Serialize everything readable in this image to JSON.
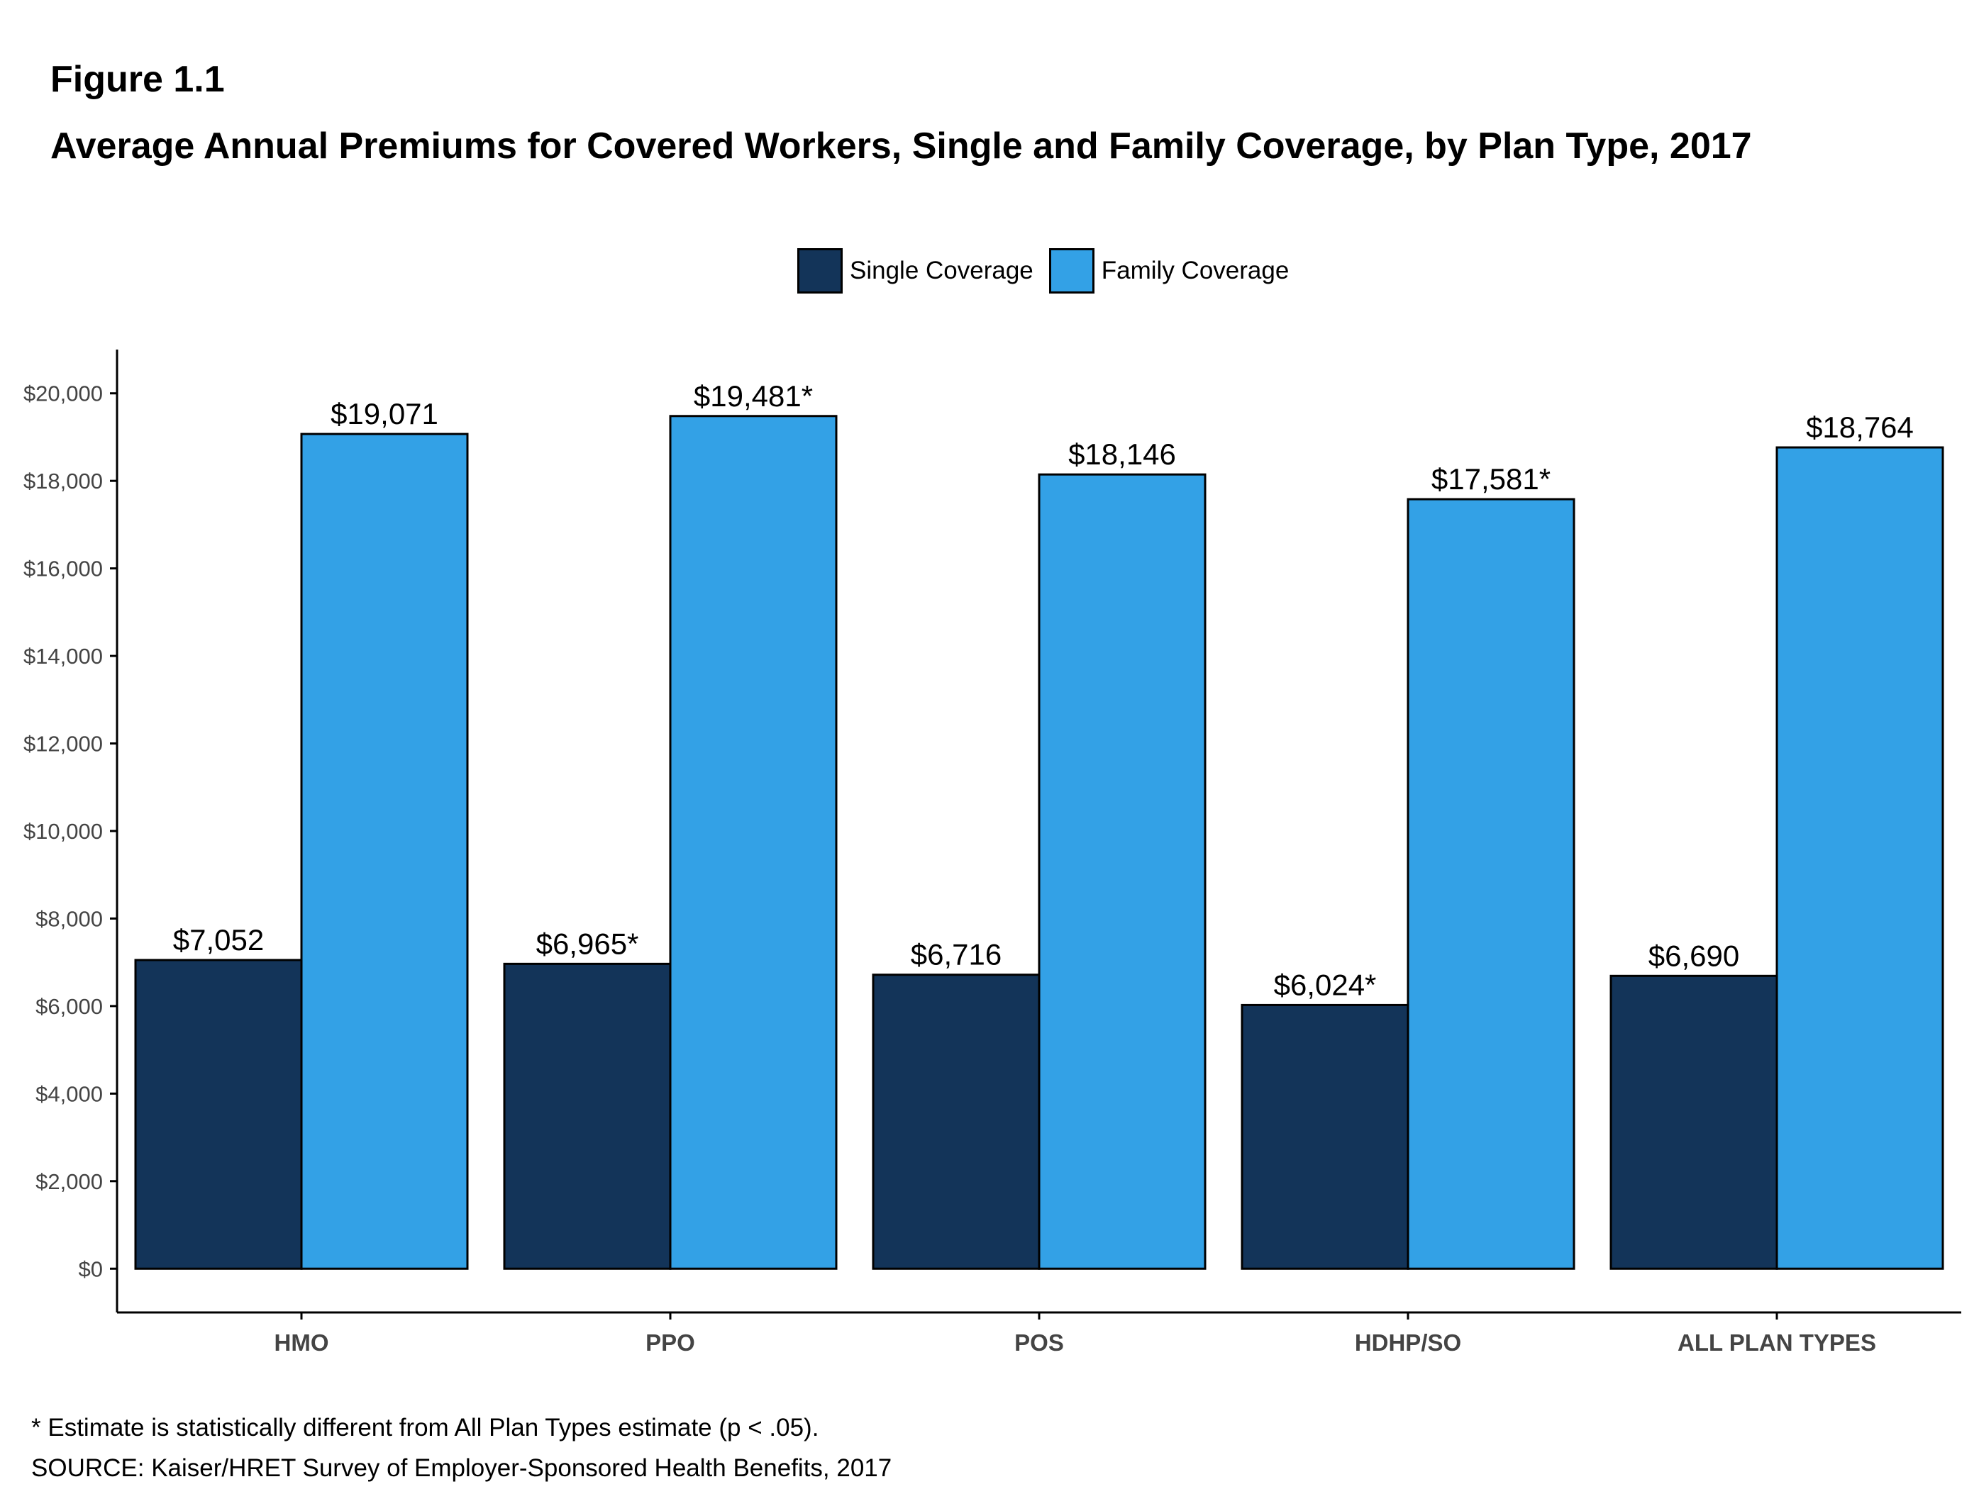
{
  "figure": {
    "label": "Figure 1.1",
    "title": "Average Annual Premiums for Covered Workers, Single and Family Coverage, by Plan Type, 2017"
  },
  "legend": {
    "single": "Single Coverage",
    "family": "Family Coverage"
  },
  "colors": {
    "single": "#133459",
    "family": "#33a1e6",
    "axis": "#000000"
  },
  "chart_data": {
    "type": "bar",
    "categories": [
      "HMO",
      "PPO",
      "POS",
      "HDHP/SO",
      "ALL PLAN TYPES"
    ],
    "series": [
      {
        "name": "Single Coverage",
        "values": [
          7052,
          6965,
          6716,
          6024,
          6690
        ],
        "labels": [
          "$7,052",
          "$6,965*",
          "$6,716",
          "$6,024*",
          "$6,690"
        ]
      },
      {
        "name": "Family Coverage",
        "values": [
          19071,
          19481,
          18146,
          17581,
          18764
        ],
        "labels": [
          "$19,071",
          "$19,481*",
          "$18,146",
          "$17,581*",
          "$18,764"
        ]
      }
    ],
    "yticks": [
      0,
      2000,
      4000,
      6000,
      8000,
      10000,
      12000,
      14000,
      16000,
      18000,
      20000
    ],
    "ytick_labels": [
      "$0",
      "$2,000",
      "$4,000",
      "$6,000",
      "$8,000",
      "$10,000",
      "$12,000",
      "$14,000",
      "$16,000",
      "$18,000",
      "$20,000"
    ],
    "ylim": [
      -1000,
      21000
    ],
    "grid": false,
    "legend_position": "top-center"
  },
  "notes": {
    "footnote": "* Estimate is statistically different from All Plan Types estimate (p < .05).",
    "source": "SOURCE: Kaiser/HRET Survey of Employer-Sponsored Health Benefits, 2017"
  }
}
